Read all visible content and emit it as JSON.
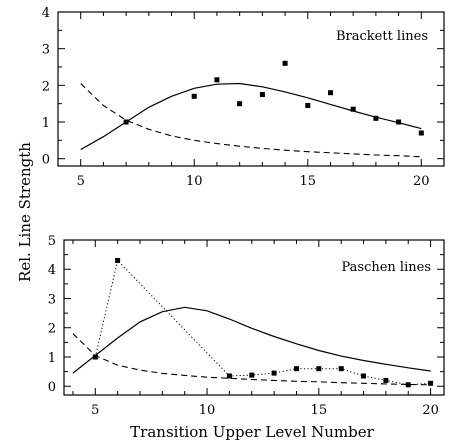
{
  "figure": {
    "ylabel": "Rel. Line Strength",
    "xlabel": "Transition Upper Level Number"
  },
  "chart_data": [
    {
      "type": "line",
      "title": "Brackett lines",
      "xlim": [
        4,
        21
      ],
      "ylim": [
        -0.2,
        4
      ],
      "xticks": [
        5,
        10,
        15,
        20
      ],
      "yticks": [
        0,
        1,
        2,
        3,
        4
      ],
      "series": [
        {
          "style": "solid",
          "x": [
            5,
            6,
            7,
            8,
            9,
            10,
            11,
            12,
            13,
            14,
            15,
            16,
            17,
            18,
            19,
            20
          ],
          "values": [
            0.25,
            0.6,
            1.0,
            1.4,
            1.7,
            1.92,
            2.03,
            2.05,
            1.96,
            1.82,
            1.66,
            1.48,
            1.3,
            1.13,
            0.98,
            0.82
          ]
        },
        {
          "style": "dashed",
          "x": [
            5,
            6,
            7,
            8,
            9,
            10,
            11,
            12,
            13,
            14,
            15,
            16,
            17,
            18,
            19,
            20
          ],
          "values": [
            2.05,
            1.45,
            1.05,
            0.8,
            0.62,
            0.5,
            0.41,
            0.34,
            0.28,
            0.23,
            0.19,
            0.16,
            0.13,
            0.1,
            0.08,
            0.05
          ]
        },
        {
          "style": "points",
          "x": [
            7,
            10,
            11,
            12,
            13,
            14,
            15,
            16,
            17,
            18,
            19,
            20
          ],
          "values": [
            1.0,
            1.7,
            2.15,
            1.5,
            1.75,
            2.6,
            1.45,
            1.8,
            1.35,
            1.1,
            1.0,
            0.7
          ]
        }
      ]
    },
    {
      "type": "line",
      "title": "Paschen lines",
      "xlim": [
        3.6,
        20.6
      ],
      "ylim": [
        -0.3,
        5
      ],
      "xticks": [
        5,
        10,
        15,
        20
      ],
      "yticks": [
        0,
        1,
        2,
        3,
        4,
        5
      ],
      "series": [
        {
          "style": "solid",
          "x": [
            4,
            5,
            6,
            7,
            8,
            9,
            10,
            11,
            12,
            13,
            14,
            15,
            16,
            17,
            18,
            19,
            20
          ],
          "values": [
            0.45,
            1.05,
            1.65,
            2.2,
            2.55,
            2.7,
            2.58,
            2.3,
            1.98,
            1.7,
            1.45,
            1.22,
            1.03,
            0.88,
            0.75,
            0.63,
            0.52
          ]
        },
        {
          "style": "dashed",
          "x": [
            4,
            5,
            6,
            7,
            8,
            9,
            10,
            11,
            12,
            13,
            14,
            15,
            16,
            17,
            18,
            19,
            20
          ],
          "values": [
            1.8,
            1.05,
            0.72,
            0.55,
            0.44,
            0.37,
            0.31,
            0.27,
            0.23,
            0.2,
            0.17,
            0.15,
            0.12,
            0.1,
            0.08,
            0.06,
            0.05
          ]
        },
        {
          "style": "dotted-points",
          "x": [
            5,
            6,
            11,
            12,
            13,
            14,
            15,
            16,
            17,
            18,
            19,
            20
          ],
          "values": [
            1.0,
            4.3,
            0.35,
            0.38,
            0.45,
            0.6,
            0.6,
            0.6,
            0.35,
            0.2,
            0.05,
            0.1
          ]
        }
      ]
    }
  ]
}
